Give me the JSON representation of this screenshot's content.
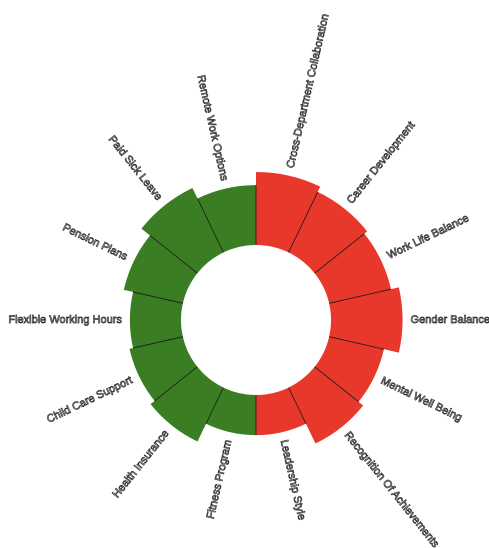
{
  "chart_data": {
    "type": "radial-bar",
    "title": "",
    "inner_radius_value": 0,
    "radial_range": [
      0,
      100
    ],
    "series": [
      {
        "name": "red",
        "color": "#e8372b"
      },
      {
        "name": "green",
        "color": "#3a7d23"
      }
    ],
    "categories": [
      {
        "label": "Cross-Department Collaboration",
        "value": 100,
        "series": "red"
      },
      {
        "label": "Career Development",
        "value": 92,
        "series": "red"
      },
      {
        "label": "Work Life Balance",
        "value": 87,
        "series": "red"
      },
      {
        "label": "Gender Balance",
        "value": 98,
        "series": "red"
      },
      {
        "label": "Mental Well Being",
        "value": 77,
        "series": "red"
      },
      {
        "label": "Recognition Of Achievements",
        "value": 85,
        "series": "red"
      },
      {
        "label": "Leadership Style",
        "value": 55,
        "series": "red"
      },
      {
        "label": "Fitness Program",
        "value": 55,
        "series": "green"
      },
      {
        "label": "Health Insurance",
        "value": 82,
        "series": "green"
      },
      {
        "label": "Child Care Support",
        "value": 75,
        "series": "green"
      },
      {
        "label": "Flexible Working Hours",
        "value": 70,
        "series": "green"
      },
      {
        "label": "Pension Plans",
        "value": 83,
        "series": "green"
      },
      {
        "label": "Paid Sick Leave",
        "value": 98,
        "series": "green"
      },
      {
        "label": "Remote Work Options",
        "value": 82,
        "series": "green"
      }
    ]
  }
}
